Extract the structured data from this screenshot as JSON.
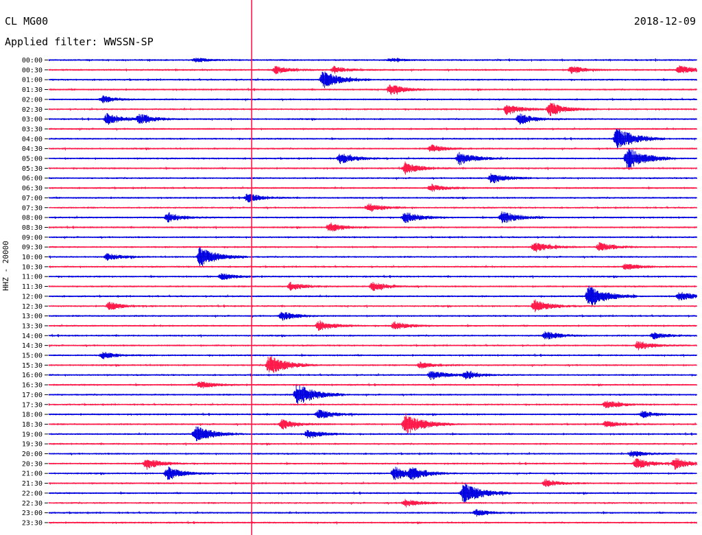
{
  "header": {
    "station": "CL MG00",
    "date": "2018-12-09",
    "filter": "Applied filter: WWSSN-SP"
  },
  "chart_data": {
    "type": "line",
    "title": "CL MG00",
    "date": "2018-12-09",
    "filter": "WWSSN-SP",
    "ylabel": "HHZ - 20000",
    "rows": [
      "00:00",
      "00:30",
      "01:00",
      "01:30",
      "02:00",
      "02:30",
      "03:00",
      "03:30",
      "04:00",
      "04:30",
      "05:00",
      "05:30",
      "06:00",
      "06:30",
      "07:00",
      "07:30",
      "08:00",
      "08:30",
      "09:00",
      "09:30",
      "10:00",
      "10:30",
      "11:00",
      "11:30",
      "12:00",
      "12:30",
      "13:00",
      "13:30",
      "14:00",
      "14:30",
      "15:00",
      "15:30",
      "16:00",
      "16:30",
      "17:00",
      "17:30",
      "18:00",
      "18:30",
      "19:00",
      "19:30",
      "20:00",
      "20:30",
      "21:00",
      "21:30",
      "22:00",
      "22:30",
      "23:00",
      "23:30"
    ],
    "series_colors": [
      "#0000e0",
      "#ff1848"
    ],
    "x_range_minutes": [
      0,
      30
    ],
    "large_event_minute": 9.4,
    "events": [
      {
        "row": "00:00",
        "minute": 6.8,
        "amp": 0.2
      },
      {
        "row": "00:00",
        "minute": 15.8,
        "amp": 0.15
      },
      {
        "row": "00:30",
        "minute": 10.5,
        "amp": 0.35
      },
      {
        "row": "00:30",
        "minute": 13.2,
        "amp": 0.3
      },
      {
        "row": "00:30",
        "minute": 24.2,
        "amp": 0.35
      },
      {
        "row": "00:30",
        "minute": 29.2,
        "amp": 0.4
      },
      {
        "row": "01:00",
        "minute": 12.7,
        "amp": 0.8
      },
      {
        "row": "01:30",
        "minute": 15.8,
        "amp": 0.5
      },
      {
        "row": "02:00",
        "minute": 2.5,
        "amp": 0.3
      },
      {
        "row": "02:30",
        "minute": 21.2,
        "amp": 0.5
      },
      {
        "row": "02:30",
        "minute": 23.2,
        "amp": 0.6
      },
      {
        "row": "03:00",
        "minute": 2.7,
        "amp": 0.5
      },
      {
        "row": "03:00",
        "minute": 4.2,
        "amp": 0.45
      },
      {
        "row": "03:00",
        "minute": 21.8,
        "amp": 0.5
      },
      {
        "row": "04:00",
        "minute": 26.3,
        "amp": 1.0
      },
      {
        "row": "04:30",
        "minute": 17.7,
        "amp": 0.35
      },
      {
        "row": "05:00",
        "minute": 13.5,
        "amp": 0.5
      },
      {
        "row": "05:00",
        "minute": 19.0,
        "amp": 0.6
      },
      {
        "row": "05:00",
        "minute": 26.8,
        "amp": 1.0
      },
      {
        "row": "05:30",
        "minute": 16.5,
        "amp": 0.5
      },
      {
        "row": "06:00",
        "minute": 20.5,
        "amp": 0.5
      },
      {
        "row": "06:30",
        "minute": 17.7,
        "amp": 0.35
      },
      {
        "row": "07:00",
        "minute": 9.2,
        "amp": 0.4
      },
      {
        "row": "07:30",
        "minute": 14.8,
        "amp": 0.4
      },
      {
        "row": "08:00",
        "minute": 5.5,
        "amp": 0.4
      },
      {
        "row": "08:00",
        "minute": 16.5,
        "amp": 0.5
      },
      {
        "row": "08:00",
        "minute": 21.0,
        "amp": 0.6
      },
      {
        "row": "08:30",
        "minute": 13.0,
        "amp": 0.4
      },
      {
        "row": "09:30",
        "minute": 22.5,
        "amp": 0.45
      },
      {
        "row": "09:30",
        "minute": 25.5,
        "amp": 0.4
      },
      {
        "row": "10:00",
        "minute": 2.7,
        "amp": 0.3
      },
      {
        "row": "10:00",
        "minute": 7.0,
        "amp": 0.9
      },
      {
        "row": "10:30",
        "minute": 26.7,
        "amp": 0.3
      },
      {
        "row": "11:00",
        "minute": 8.0,
        "amp": 0.3
      },
      {
        "row": "11:30",
        "minute": 11.2,
        "amp": 0.35
      },
      {
        "row": "11:30",
        "minute": 15.0,
        "amp": 0.4
      },
      {
        "row": "12:00",
        "minute": 25.0,
        "amp": 1.0
      },
      {
        "row": "12:00",
        "minute": 29.2,
        "amp": 0.4
      },
      {
        "row": "12:30",
        "minute": 2.8,
        "amp": 0.35
      },
      {
        "row": "12:30",
        "minute": 22.5,
        "amp": 0.6
      },
      {
        "row": "13:00",
        "minute": 10.8,
        "amp": 0.4
      },
      {
        "row": "13:30",
        "minute": 12.5,
        "amp": 0.45
      },
      {
        "row": "13:30",
        "minute": 16.0,
        "amp": 0.35
      },
      {
        "row": "14:00",
        "minute": 23.0,
        "amp": 0.4
      },
      {
        "row": "14:00",
        "minute": 28.0,
        "amp": 0.3
      },
      {
        "row": "14:30",
        "minute": 27.3,
        "amp": 0.4
      },
      {
        "row": "15:00",
        "minute": 2.5,
        "amp": 0.3
      },
      {
        "row": "15:30",
        "minute": 10.2,
        "amp": 0.9
      },
      {
        "row": "15:30",
        "minute": 17.2,
        "amp": 0.3
      },
      {
        "row": "16:00",
        "minute": 17.7,
        "amp": 0.45
      },
      {
        "row": "16:00",
        "minute": 19.3,
        "amp": 0.35
      },
      {
        "row": "16:30",
        "minute": 7.0,
        "amp": 0.35
      },
      {
        "row": "17:00",
        "minute": 11.5,
        "amp": 1.0
      },
      {
        "row": "17:30",
        "minute": 25.8,
        "amp": 0.4
      },
      {
        "row": "18:00",
        "minute": 12.5,
        "amp": 0.45
      },
      {
        "row": "18:00",
        "minute": 27.5,
        "amp": 0.3
      },
      {
        "row": "18:30",
        "minute": 10.8,
        "amp": 0.45
      },
      {
        "row": "18:30",
        "minute": 16.5,
        "amp": 1.0
      },
      {
        "row": "18:30",
        "minute": 25.8,
        "amp": 0.3
      },
      {
        "row": "19:00",
        "minute": 6.8,
        "amp": 0.8
      },
      {
        "row": "19:00",
        "minute": 12.0,
        "amp": 0.4
      },
      {
        "row": "20:00",
        "minute": 27.0,
        "amp": 0.3
      },
      {
        "row": "20:30",
        "minute": 4.5,
        "amp": 0.5
      },
      {
        "row": "20:30",
        "minute": 27.2,
        "amp": 0.5
      },
      {
        "row": "20:30",
        "minute": 29.0,
        "amp": 0.5
      },
      {
        "row": "21:00",
        "minute": 5.5,
        "amp": 0.6
      },
      {
        "row": "21:00",
        "minute": 16.0,
        "amp": 0.6
      },
      {
        "row": "21:00",
        "minute": 16.8,
        "amp": 0.5
      },
      {
        "row": "21:30",
        "minute": 23.0,
        "amp": 0.35
      },
      {
        "row": "22:00",
        "minute": 19.2,
        "amp": 1.0
      },
      {
        "row": "22:30",
        "minute": 16.5,
        "amp": 0.35
      },
      {
        "row": "23:00",
        "minute": 19.8,
        "amp": 0.3
      }
    ]
  }
}
